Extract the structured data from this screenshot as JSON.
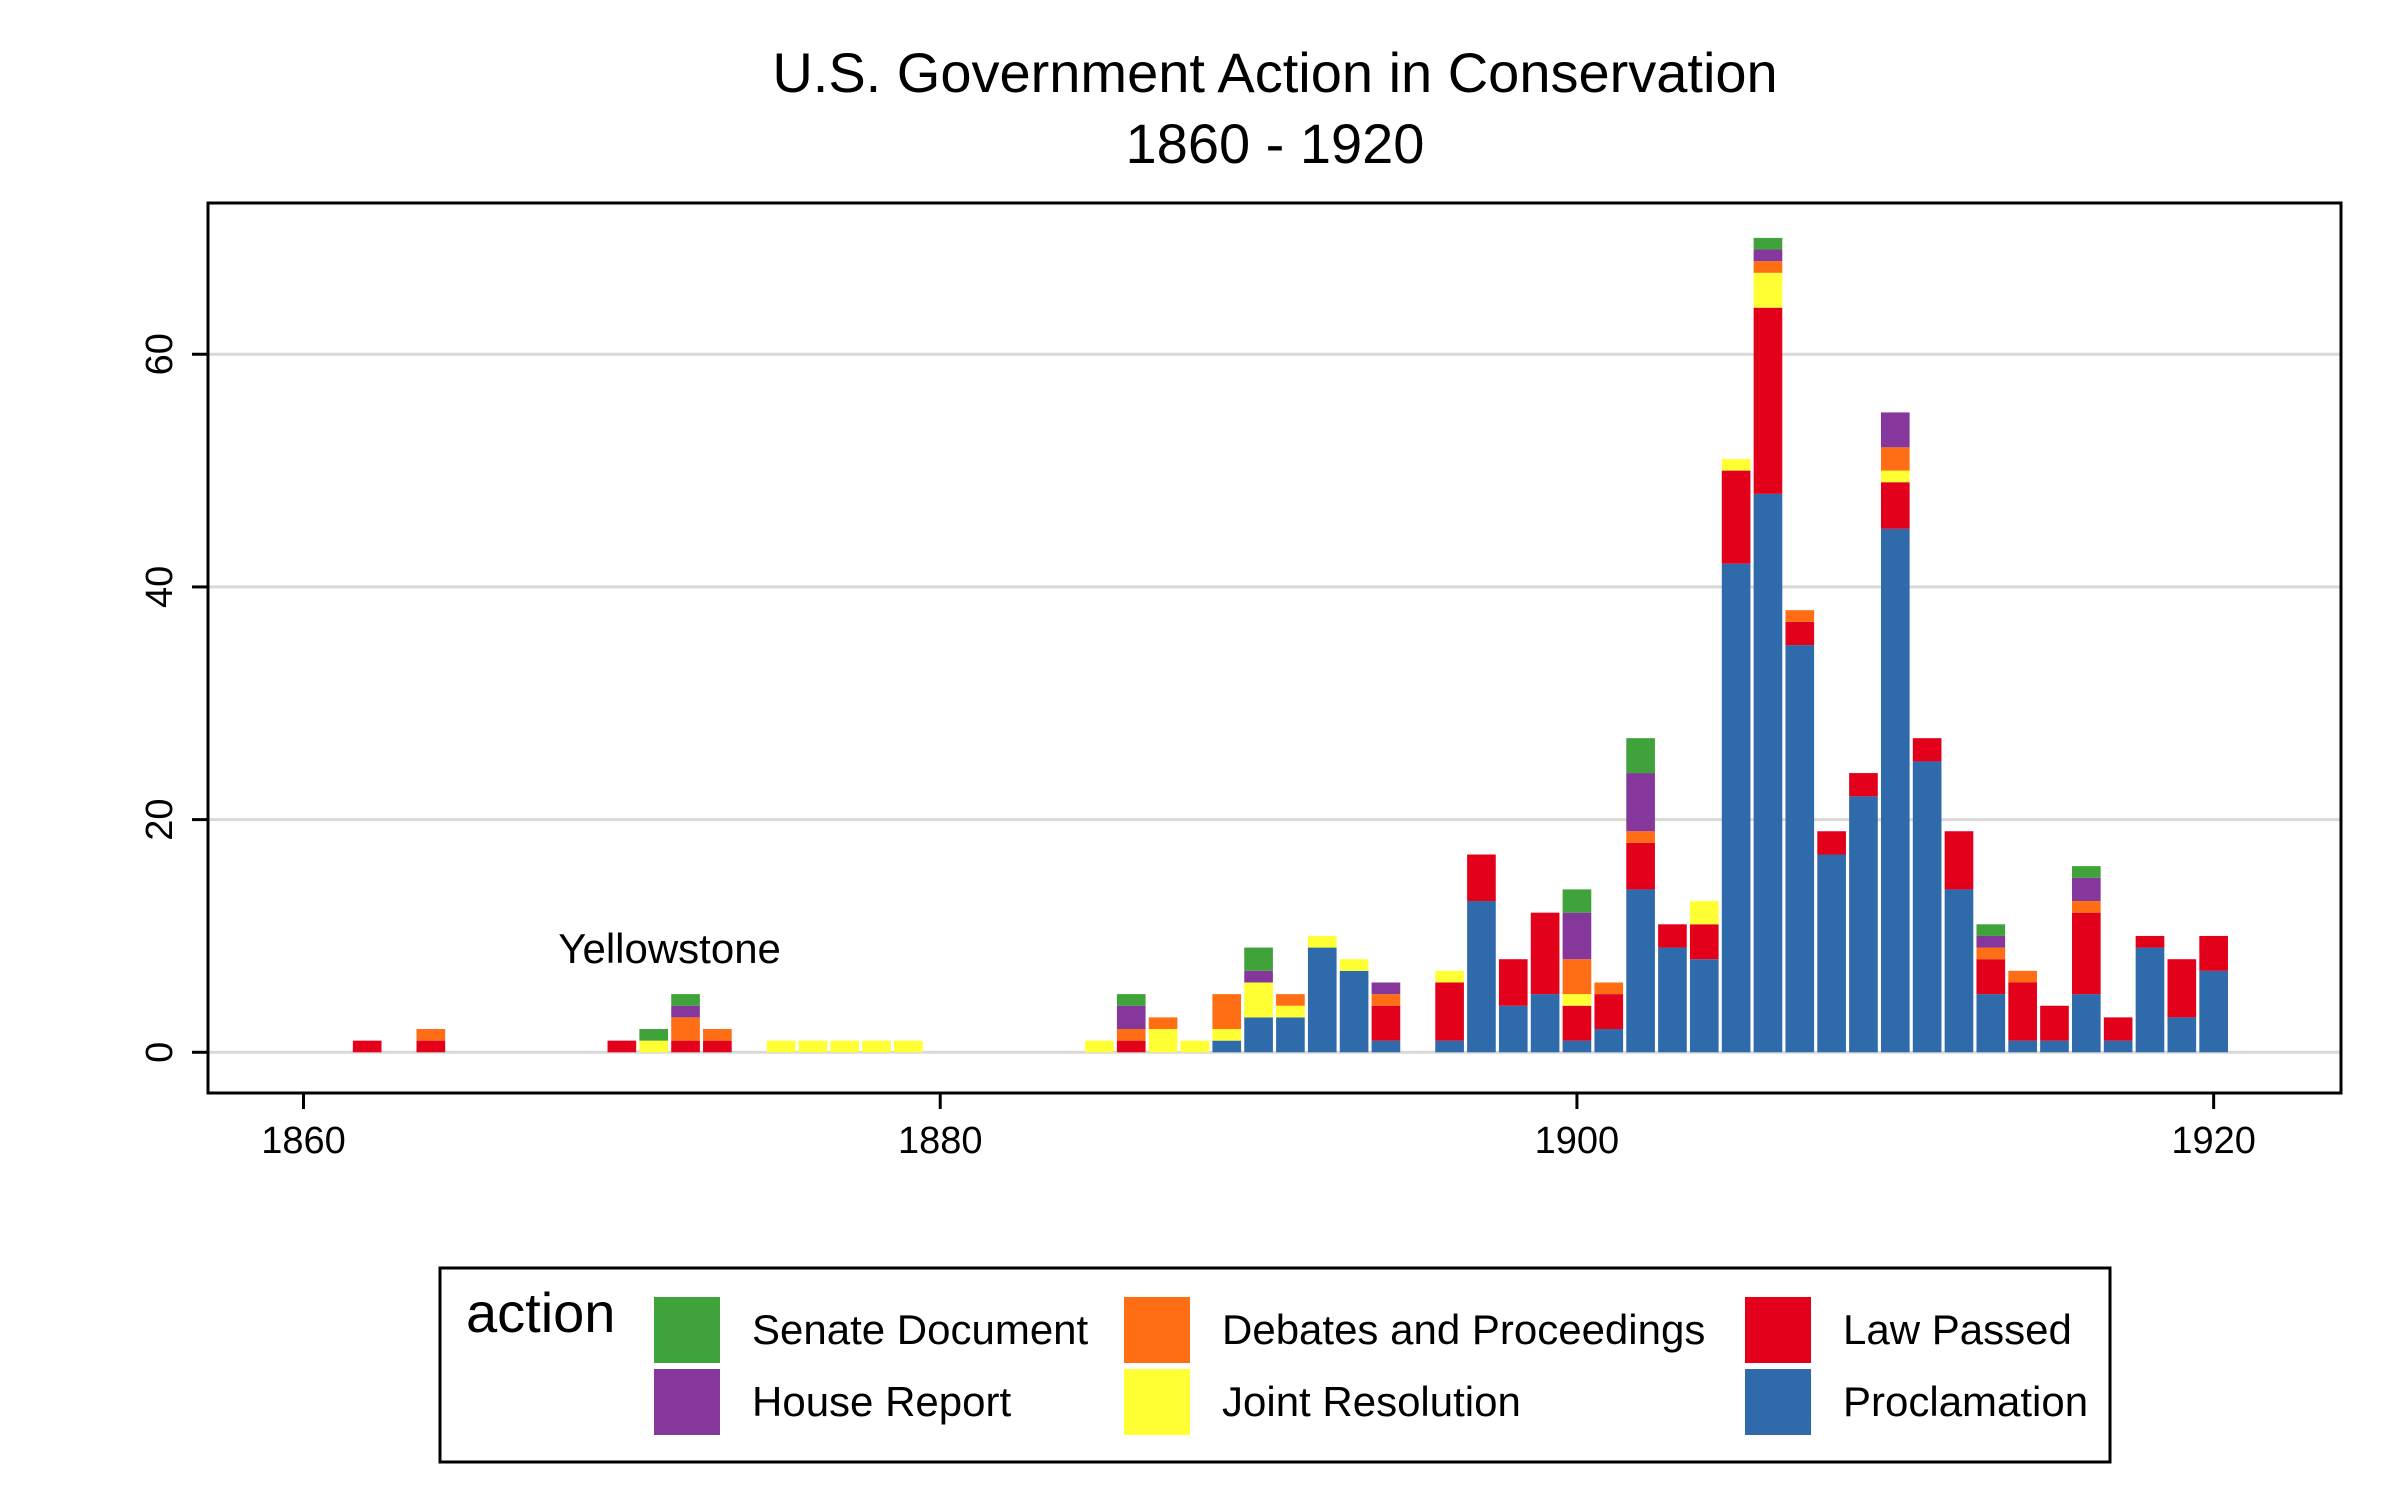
{
  "chart_data": {
    "type": "bar",
    "stacked": true,
    "title": "U.S. Government Action in  Conservation",
    "subtitle": "1860 - 1920",
    "xlabel": "",
    "ylabel": "",
    "xlim": [
      1857,
      1924
    ],
    "ylim": [
      -3.5,
      73
    ],
    "x_ticks": [
      1860,
      1880,
      1900,
      1920
    ],
    "y_ticks": [
      0,
      20,
      40,
      60
    ],
    "grid": "horizontal",
    "legend_title": "action",
    "legend_position": "bottom",
    "annotation": {
      "text": "Yellowstone",
      "x": 1872,
      "y": 8
    },
    "series": [
      {
        "name": "Proclamation",
        "color": "#2F6AAB",
        "values": {
          "1889": 1,
          "1890": 3,
          "1891": 3,
          "1892": 9,
          "1893": 7,
          "1894": 1,
          "1896": 1,
          "1897": 13,
          "1898": 4,
          "1899": 5,
          "1900": 1,
          "1901": 2,
          "1902": 14,
          "1903": 9,
          "1904": 8,
          "1905": 42,
          "1906": 48,
          "1907": 35,
          "1908": 17,
          "1909": 22,
          "1910": 45,
          "1911": 25,
          "1912": 14,
          "1913": 5,
          "1914": 1,
          "1915": 1,
          "1916": 5,
          "1917": 1,
          "1918": 9,
          "1919": 3,
          "1920": 7
        }
      },
      {
        "name": "Law Passed",
        "color": "#E3001B",
        "values": {
          "1862": 1,
          "1864": 1,
          "1870": 1,
          "1872": 1,
          "1873": 1,
          "1886": 1,
          "1894": 3,
          "1896": 5,
          "1897": 4,
          "1898": 4,
          "1899": 7,
          "1900": 3,
          "1901": 3,
          "1902": 4,
          "1903": 2,
          "1904": 3,
          "1905": 8,
          "1906": 16,
          "1907": 2,
          "1908": 2,
          "1909": 2,
          "1910": 4,
          "1911": 2,
          "1912": 5,
          "1913": 3,
          "1914": 5,
          "1915": 3,
          "1916": 7,
          "1917": 2,
          "1918": 1,
          "1919": 5,
          "1920": 3
        }
      },
      {
        "name": "Joint Resolution",
        "color": "#FFFF33",
        "values": {
          "1871": 1,
          "1875": 1,
          "1876": 1,
          "1877": 1,
          "1878": 1,
          "1879": 1,
          "1885": 1,
          "1887": 2,
          "1888": 1,
          "1889": 1,
          "1890": 3,
          "1891": 1,
          "1892": 1,
          "1893": 1,
          "1896": 1,
          "1900": 1,
          "1904": 2,
          "1905": 1,
          "1906": 3,
          "1910": 1
        }
      },
      {
        "name": "Debates and Proceedings",
        "color": "#FF6E15",
        "values": {
          "1864": 1,
          "1872": 2,
          "1873": 1,
          "1886": 1,
          "1887": 1,
          "1889": 3,
          "1891": 1,
          "1894": 1,
          "1900": 3,
          "1901": 1,
          "1902": 1,
          "1906": 1,
          "1907": 1,
          "1910": 2,
          "1913": 1,
          "1914": 1,
          "1916": 1
        }
      },
      {
        "name": "House Report",
        "color": "#86379C",
        "values": {
          "1872": 1,
          "1886": 2,
          "1890": 1,
          "1894": 1,
          "1900": 4,
          "1902": 5,
          "1906": 1,
          "1910": 3,
          "1913": 1,
          "1916": 2
        }
      },
      {
        "name": "Senate Document",
        "color": "#3FA23A",
        "values": {
          "1871": 1,
          "1872": 1,
          "1886": 1,
          "1890": 2,
          "1900": 2,
          "1902": 3,
          "1906": 1,
          "1913": 1,
          "1916": 1
        }
      }
    ]
  },
  "legend": {
    "title": "action",
    "items": [
      {
        "label": "Senate Document",
        "color": "#3FA23A"
      },
      {
        "label": "House Report",
        "color": "#86379C"
      },
      {
        "label": "Debates and Proceedings",
        "color": "#FF6E15"
      },
      {
        "label": "Joint Resolution",
        "color": "#FFFF33"
      },
      {
        "label": "Law Passed",
        "color": "#E3001B"
      },
      {
        "label": "Proclamation",
        "color": "#2F6AAB"
      }
    ]
  }
}
